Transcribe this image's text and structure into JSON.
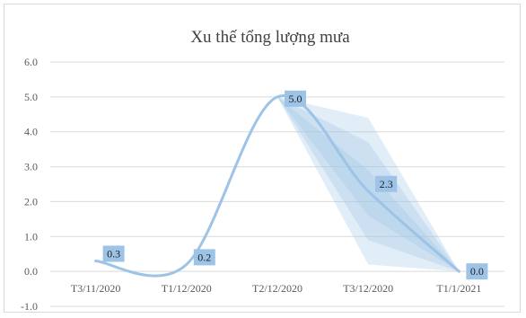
{
  "chart_data": {
    "type": "line",
    "title": "Xu thế tổng lượng mưa",
    "xlabel": "",
    "ylabel": "",
    "categories": [
      "T3/11/2020",
      "T1/12/2020",
      "T2/12/2020",
      "T3/12/2020",
      "T1/1/2021"
    ],
    "series": [
      {
        "values": [
          0.3,
          0.2,
          5.0,
          2.3,
          0.0
        ]
      }
    ],
    "forecast_bands": [
      {
        "from_category": "T2/12/2020",
        "to_category": "T1/1/2021",
        "low": [
          5.0,
          0.2,
          0.0
        ],
        "high": [
          5.0,
          4.4,
          0.0
        ]
      },
      {
        "from_category": "T2/12/2020",
        "to_category": "T1/1/2021",
        "low": [
          5.0,
          0.9,
          0.0
        ],
        "high": [
          5.0,
          3.7,
          0.0
        ]
      },
      {
        "from_category": "T2/12/2020",
        "to_category": "T1/1/2021",
        "low": [
          5.0,
          1.6,
          0.0
        ],
        "high": [
          5.0,
          2.9,
          0.0
        ]
      }
    ],
    "data_labels": [
      "0.3",
      "0.2",
      "5.0",
      "2.3",
      "0.0"
    ],
    "yticks": [
      "-1.0",
      "0.0",
      "1.0",
      "2.0",
      "3.0",
      "4.0",
      "5.0",
      "6.0"
    ],
    "ylim": [
      -1.0,
      6.0
    ],
    "grid": true,
    "legend": "none",
    "colors": {
      "line": "#9dc3e6",
      "band": "#9dc3e6",
      "label_box": "#9dc3e6",
      "grid": "#d9d9d9"
    }
  }
}
